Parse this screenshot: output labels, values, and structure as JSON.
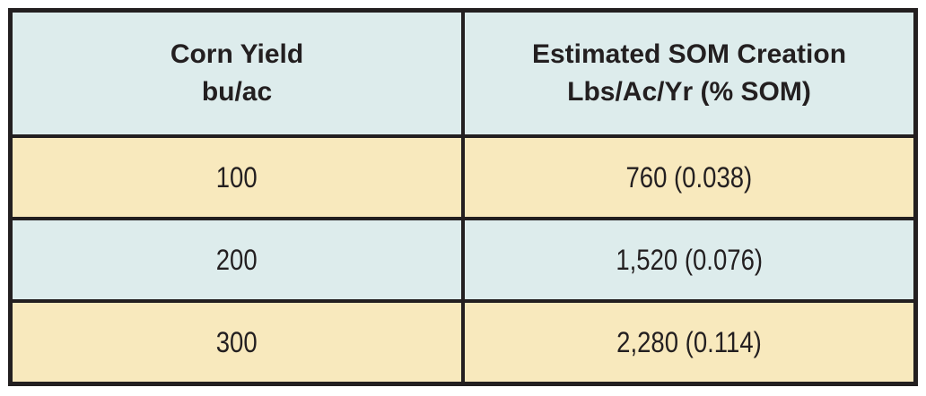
{
  "meta": {
    "background_color": "#ffffff",
    "border_color": "#231f20",
    "header_bg_color": "#ddecec",
    "row_cream_color": "#f8e9bd",
    "row_blue_color": "#ddecec",
    "text_color": "#231f20"
  },
  "table": {
    "headers": [
      {
        "line1": "Corn Yield",
        "line2": "bu/ac"
      },
      {
        "line1": "Estimated SOM Creation",
        "line2": "Lbs/Ac/Yr (% SOM)"
      }
    ],
    "rows": [
      [
        "100",
        "760 (0.038)"
      ],
      [
        "200",
        "1,520 (0.076)"
      ],
      [
        "300",
        "2,280 (0.114)"
      ]
    ]
  },
  "chart_data": {
    "type": "table",
    "title": "",
    "columns": [
      "Corn Yield bu/ac",
      "Estimated SOM Creation Lbs/Ac/Yr (% SOM)"
    ],
    "rows": [
      [
        "100",
        "760 (0.038)"
      ],
      [
        "200",
        "1,520 (0.076)"
      ],
      [
        "300",
        "2,280 (0.114)"
      ]
    ],
    "corn_yield_bu_per_ac": [
      100,
      200,
      300
    ],
    "som_creation_lbs_per_ac_yr": [
      760,
      1520,
      2280
    ],
    "som_creation_percent_som": [
      0.038,
      0.076,
      0.114
    ]
  }
}
